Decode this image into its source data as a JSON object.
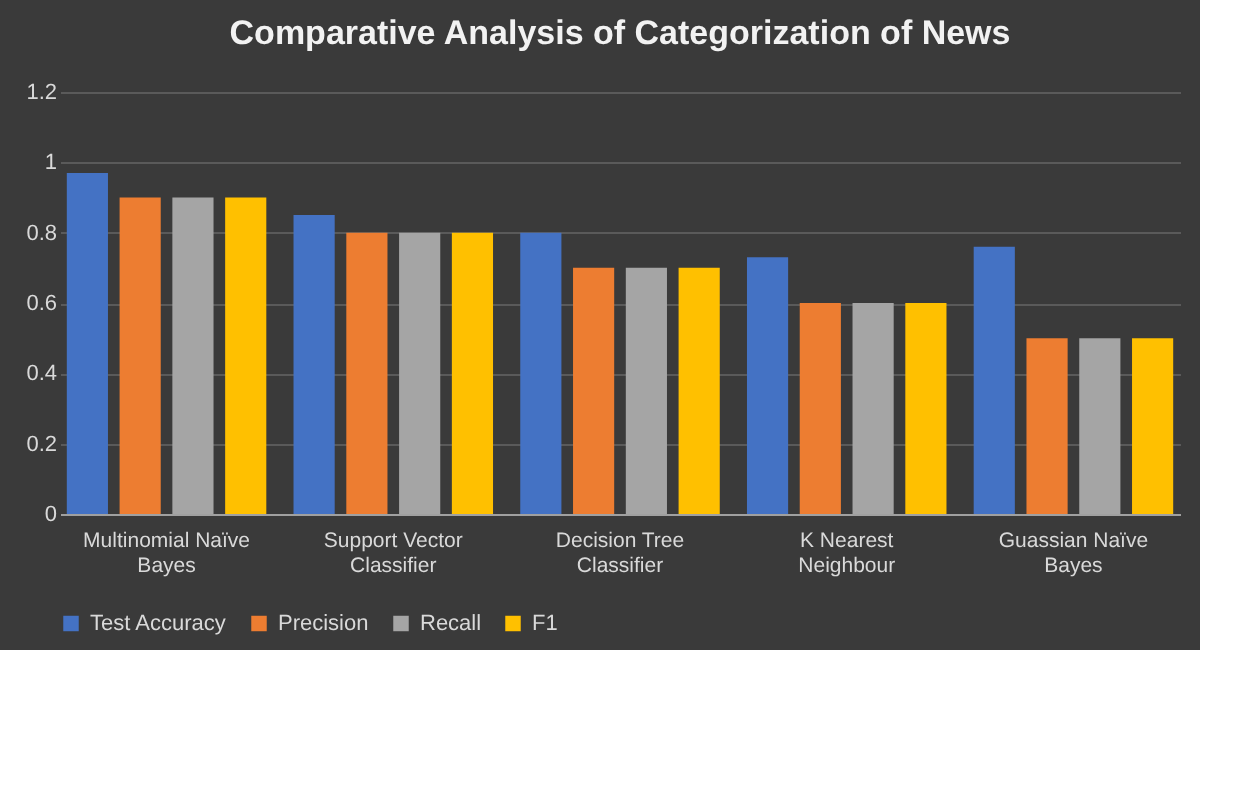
{
  "chart_data": {
    "type": "bar",
    "title": "Comparative Analysis of Categorization of News",
    "categories": [
      "Multinomial Naïve Bayes",
      "Support Vector Classifier",
      "Decision Tree Classifier",
      "K Nearest Neighbour",
      "Guassian Naïve Bayes"
    ],
    "series": [
      {
        "name": "Test Accuracy",
        "color": "#4472c4",
        "values": [
          0.97,
          0.85,
          0.8,
          0.73,
          0.76
        ]
      },
      {
        "name": "Precision",
        "color": "#ed7d31",
        "values": [
          0.9,
          0.8,
          0.7,
          0.6,
          0.5
        ]
      },
      {
        "name": "Recall",
        "color": "#a5a5a5",
        "values": [
          0.9,
          0.8,
          0.7,
          0.6,
          0.5
        ]
      },
      {
        "name": "F1",
        "color": "#ffc000",
        "values": [
          0.9,
          0.8,
          0.7,
          0.6,
          0.5
        ]
      }
    ],
    "ylim": [
      0,
      1.2
    ],
    "yticks": [
      0,
      0.2,
      0.4,
      0.6,
      0.8,
      1,
      1.2
    ],
    "grid": "y",
    "legend": "bottom"
  }
}
